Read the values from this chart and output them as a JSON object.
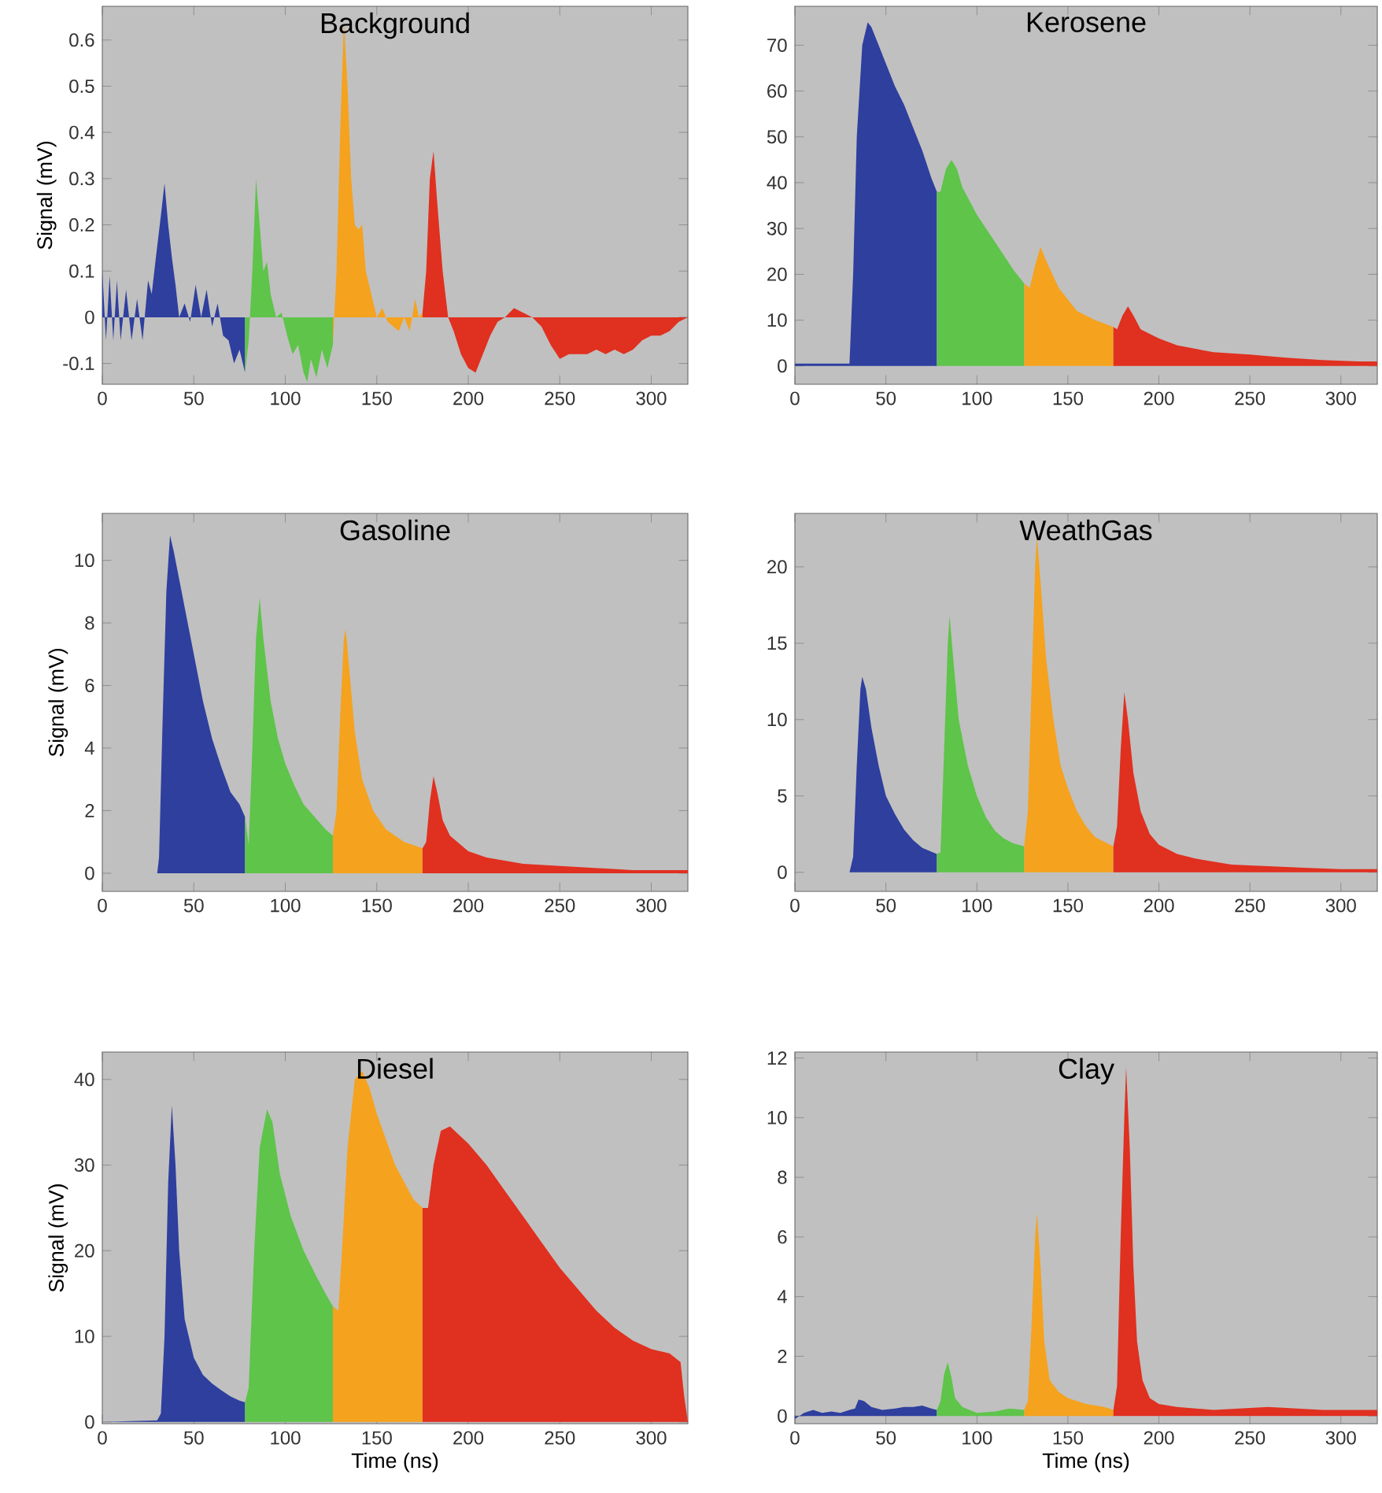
{
  "chart_data": [
    {
      "type": "area",
      "title": "Background",
      "ylabel": "Signal (mV)",
      "xlim": [
        0,
        320
      ],
      "ylim": [
        -0.145,
        0.673
      ],
      "xticks": [
        0,
        50,
        100,
        150,
        200,
        250,
        300
      ],
      "yticks": [
        -0.1,
        0,
        0.1,
        0.2,
        0.3,
        0.4,
        0.5,
        0.6
      ],
      "grid": false,
      "legend": false,
      "series": [
        {
          "color": "#2e3f9e",
          "x": [
            0,
            2,
            4,
            6,
            8,
            10,
            13,
            16,
            19,
            22,
            25,
            27,
            29,
            32,
            34,
            36,
            38,
            40,
            42,
            45,
            48,
            51,
            54,
            57,
            60,
            63,
            66,
            69,
            72,
            75,
            78
          ],
          "values": [
            0.1,
            -0.05,
            0.09,
            -0.05,
            0.08,
            -0.05,
            0.06,
            -0.05,
            0.04,
            -0.05,
            0.08,
            0.05,
            0.12,
            0.22,
            0.29,
            0.2,
            0.13,
            0.07,
            0.0,
            0.03,
            -0.01,
            0.07,
            0.0,
            0.06,
            -0.02,
            0.03,
            -0.04,
            -0.05,
            -0.1,
            -0.07,
            -0.12
          ]
        },
        {
          "color": "#5ec44a",
          "x": [
            78,
            80,
            82,
            84,
            86,
            88,
            90,
            92,
            95,
            98,
            101,
            104,
            107,
            110,
            112,
            114,
            117,
            120,
            123,
            126
          ],
          "values": [
            -0.12,
            -0.05,
            0.1,
            0.3,
            0.2,
            0.1,
            0.12,
            0.05,
            0.0,
            0.01,
            -0.04,
            -0.08,
            -0.06,
            -0.12,
            -0.14,
            -0.09,
            -0.13,
            -0.07,
            -0.11,
            -0.06
          ]
        },
        {
          "color": "#f5a21e",
          "x": [
            126,
            128,
            130,
            132,
            134,
            136,
            138,
            140,
            142,
            144,
            147,
            150,
            153,
            156,
            159,
            162,
            165,
            168,
            171,
            173,
            175
          ],
          "values": [
            -0.06,
            0.1,
            0.4,
            0.64,
            0.5,
            0.3,
            0.2,
            0.19,
            0.2,
            0.1,
            0.05,
            0.0,
            0.02,
            -0.01,
            -0.02,
            -0.03,
            0.0,
            -0.03,
            0.04,
            0.0,
            0.01
          ]
        },
        {
          "color": "#e03020",
          "x": [
            175,
            177,
            179,
            181,
            183,
            186,
            189,
            192,
            196,
            200,
            204,
            208,
            212,
            216,
            220,
            225,
            230,
            235,
            240,
            245,
            250,
            255,
            260,
            265,
            270,
            275,
            280,
            285,
            290,
            295,
            300,
            305,
            310,
            315,
            320
          ],
          "values": [
            0.01,
            0.1,
            0.3,
            0.36,
            0.25,
            0.1,
            0.0,
            -0.03,
            -0.08,
            -0.11,
            -0.12,
            -0.08,
            -0.04,
            -0.01,
            0.0,
            0.02,
            0.01,
            0.0,
            -0.02,
            -0.06,
            -0.09,
            -0.08,
            -0.08,
            -0.08,
            -0.07,
            -0.08,
            -0.07,
            -0.08,
            -0.07,
            -0.05,
            -0.04,
            -0.04,
            -0.03,
            -0.01,
            0.0
          ]
        }
      ]
    },
    {
      "type": "area",
      "title": "Kerosene",
      "xlim": [
        0,
        320
      ],
      "ylim": [
        -4,
        78.5
      ],
      "xticks": [
        0,
        50,
        100,
        150,
        200,
        250,
        300
      ],
      "yticks": [
        0,
        10,
        20,
        30,
        40,
        50,
        60,
        70
      ],
      "grid": false,
      "legend": false,
      "series": [
        {
          "color": "#2e3f9e",
          "x": [
            0,
            30,
            32,
            34,
            37,
            40,
            42,
            45,
            50,
            55,
            60,
            65,
            70,
            75,
            78
          ],
          "values": [
            0.5,
            0.5,
            20,
            50,
            70,
            75,
            74,
            71,
            66,
            61,
            57,
            52,
            47,
            41,
            38
          ]
        },
        {
          "color": "#5ec44a",
          "x": [
            78,
            80,
            83,
            86,
            89,
            92,
            100,
            110,
            120,
            126
          ],
          "values": [
            38,
            38,
            43,
            45,
            43,
            39,
            33,
            27,
            21,
            18
          ]
        },
        {
          "color": "#f5a21e",
          "x": [
            126,
            129,
            132,
            135,
            138,
            145,
            155,
            165,
            175
          ],
          "values": [
            18,
            17,
            22,
            26,
            23,
            17,
            12,
            10,
            8.5
          ]
        },
        {
          "color": "#e03020",
          "x": [
            175,
            177,
            180,
            183,
            186,
            190,
            200,
            210,
            230,
            250,
            270,
            290,
            310,
            320
          ],
          "values": [
            8.5,
            8,
            11,
            13,
            11,
            8,
            6,
            4.5,
            3,
            2.5,
            1.8,
            1.3,
            1,
            1
          ]
        }
      ]
    },
    {
      "type": "area",
      "title": "Gasoline",
      "ylabel": "Signal (mV)",
      "xlim": [
        0,
        320
      ],
      "ylim": [
        -0.58,
        11.5
      ],
      "xticks": [
        0,
        50,
        100,
        150,
        200,
        250,
        300
      ],
      "yticks": [
        0,
        2,
        4,
        6,
        8,
        10
      ],
      "grid": false,
      "legend": false,
      "series": [
        {
          "color": "#2e3f9e",
          "x": [
            0,
            30,
            31,
            33,
            35,
            37,
            39,
            45,
            50,
            55,
            60,
            65,
            70,
            75,
            78
          ],
          "values": [
            0,
            0,
            0.5,
            5,
            9,
            10.8,
            10.3,
            8.5,
            7,
            5.5,
            4.3,
            3.4,
            2.6,
            2.2,
            1.8
          ]
        },
        {
          "color": "#5ec44a",
          "x": [
            78,
            80,
            82,
            84,
            86,
            88,
            92,
            96,
            100,
            105,
            110,
            116,
            122,
            126
          ],
          "values": [
            1.8,
            0.9,
            4,
            7.5,
            8.8,
            7.5,
            5.5,
            4.3,
            3.5,
            2.8,
            2.2,
            1.8,
            1.4,
            1.2
          ]
        },
        {
          "color": "#f5a21e",
          "x": [
            126,
            128,
            130,
            132,
            133,
            135,
            138,
            142,
            148,
            155,
            165,
            175
          ],
          "values": [
            1.2,
            2,
            5,
            7.5,
            7.8,
            6.5,
            4.5,
            3,
            2,
            1.4,
            1,
            0.8
          ]
        },
        {
          "color": "#e03020",
          "x": [
            175,
            177,
            179,
            181,
            183,
            186,
            190,
            200,
            210,
            230,
            260,
            290,
            320
          ],
          "values": [
            0.8,
            1,
            2.3,
            3.1,
            2.6,
            1.7,
            1.2,
            0.7,
            0.5,
            0.3,
            0.2,
            0.1,
            0.1
          ]
        }
      ]
    },
    {
      "type": "area",
      "title": "WeathGas",
      "xlim": [
        0,
        320
      ],
      "ylim": [
        -1.25,
        23.5
      ],
      "xticks": [
        0,
        50,
        100,
        150,
        200,
        250,
        300
      ],
      "yticks": [
        0,
        5,
        10,
        15,
        20
      ],
      "grid": false,
      "legend": false,
      "series": [
        {
          "color": "#2e3f9e",
          "x": [
            0,
            30,
            32,
            34,
            36,
            37,
            39,
            42,
            46,
            50,
            55,
            60,
            65,
            70,
            78
          ],
          "values": [
            0,
            0,
            1,
            7,
            12,
            12.8,
            12,
            9.5,
            7,
            5,
            3.8,
            2.8,
            2.1,
            1.6,
            1.2
          ]
        },
        {
          "color": "#5ec44a",
          "x": [
            78,
            80,
            82,
            84,
            85,
            87,
            90,
            95,
            100,
            105,
            110,
            115,
            120,
            126
          ],
          "values": [
            1.2,
            1.3,
            8,
            15,
            16.8,
            14,
            10,
            7,
            5,
            3.6,
            2.7,
            2.2,
            1.9,
            1.7
          ]
        },
        {
          "color": "#f5a21e",
          "x": [
            126,
            128,
            130,
            132,
            133,
            135,
            138,
            142,
            146,
            150,
            155,
            160,
            165,
            170,
            175
          ],
          "values": [
            1.7,
            4,
            12,
            20,
            22,
            19,
            14,
            10,
            7,
            5.5,
            4,
            3,
            2.3,
            2,
            1.7
          ]
        },
        {
          "color": "#e03020",
          "x": [
            175,
            177,
            179,
            181,
            183,
            186,
            190,
            195,
            200,
            210,
            220,
            240,
            260,
            280,
            300,
            320
          ],
          "values": [
            1.7,
            3,
            8,
            11.8,
            10,
            6.5,
            4,
            2.5,
            1.8,
            1.2,
            0.9,
            0.5,
            0.4,
            0.3,
            0.2,
            0.2
          ]
        }
      ]
    },
    {
      "type": "area",
      "title": "Diesel",
      "xlabel": "Time (ns)",
      "ylabel": "Signal (mV)",
      "xlim": [
        0,
        320
      ],
      "ylim": [
        -0.2,
        43.2
      ],
      "xticks": [
        0,
        50,
        100,
        150,
        200,
        250,
        300
      ],
      "yticks": [
        0,
        10,
        20,
        30,
        40
      ],
      "grid": false,
      "legend": false,
      "series": [
        {
          "color": "#2e3f9e",
          "x": [
            0,
            30,
            32,
            34,
            36,
            38,
            40,
            42,
            45,
            50,
            55,
            60,
            65,
            70,
            75,
            78
          ],
          "values": [
            0,
            0.2,
            1,
            10,
            28,
            37,
            30,
            20,
            12,
            7.5,
            5.5,
            4.5,
            3.7,
            3,
            2.5,
            2.3
          ]
        },
        {
          "color": "#5ec44a",
          "x": [
            78,
            80,
            83,
            86,
            90,
            93,
            97,
            103,
            110,
            117,
            122,
            126
          ],
          "values": [
            2.3,
            4,
            20,
            32,
            36.5,
            35,
            29,
            24,
            20,
            17,
            15,
            13.5
          ]
        },
        {
          "color": "#f5a21e",
          "x": [
            126,
            129,
            131,
            134,
            138,
            142,
            146,
            150,
            155,
            160,
            165,
            170,
            175
          ],
          "values": [
            13.5,
            13,
            20,
            32,
            40,
            41,
            39,
            36,
            33,
            30,
            28,
            26,
            25
          ]
        },
        {
          "color": "#e03020",
          "x": [
            175,
            178,
            181,
            185,
            190,
            200,
            210,
            220,
            230,
            240,
            250,
            260,
            270,
            280,
            290,
            300,
            310,
            316,
            318,
            320
          ],
          "values": [
            25,
            25,
            30,
            34,
            34.5,
            32.5,
            30,
            27,
            24,
            21,
            18,
            15.5,
            13,
            11,
            9.5,
            8.5,
            8,
            7,
            3,
            0
          ]
        }
      ]
    },
    {
      "type": "area",
      "title": "Clay",
      "xlabel": "Time (ns)",
      "xlim": [
        0,
        320
      ],
      "ylim": [
        -0.26,
        12.2
      ],
      "xticks": [
        0,
        50,
        100,
        150,
        200,
        250,
        300
      ],
      "yticks": [
        0,
        2,
        4,
        6,
        8,
        10,
        12
      ],
      "grid": false,
      "legend": false,
      "series": [
        {
          "color": "#2e3f9e",
          "x": [
            0,
            5,
            10,
            15,
            20,
            25,
            30,
            33,
            35,
            38,
            42,
            48,
            55,
            60,
            65,
            70,
            75,
            78
          ],
          "values": [
            -0.1,
            0.1,
            0.2,
            0.1,
            0.15,
            0.1,
            0.2,
            0.25,
            0.55,
            0.5,
            0.3,
            0.2,
            0.25,
            0.3,
            0.3,
            0.35,
            0.25,
            0.2
          ]
        },
        {
          "color": "#5ec44a",
          "x": [
            78,
            80,
            82,
            84,
            86,
            88,
            92,
            100,
            110,
            118,
            126
          ],
          "values": [
            0.2,
            0.5,
            1.4,
            1.8,
            1.3,
            0.6,
            0.3,
            0.1,
            0.15,
            0.25,
            0.2
          ]
        },
        {
          "color": "#f5a21e",
          "x": [
            126,
            128,
            130,
            132,
            133,
            135,
            137,
            140,
            145,
            150,
            160,
            170,
            175
          ],
          "values": [
            0.2,
            0.5,
            3,
            6,
            6.8,
            5,
            2.5,
            1.2,
            0.8,
            0.6,
            0.4,
            0.3,
            0.2
          ]
        },
        {
          "color": "#e03020",
          "x": [
            175,
            177,
            179,
            181,
            182,
            184,
            186,
            188,
            191,
            195,
            200,
            210,
            230,
            260,
            290,
            320
          ],
          "values": [
            0.2,
            1,
            6,
            10,
            11.7,
            9,
            5,
            2.5,
            1.2,
            0.6,
            0.4,
            0.3,
            0.2,
            0.3,
            0.2,
            0.2
          ]
        }
      ]
    }
  ]
}
